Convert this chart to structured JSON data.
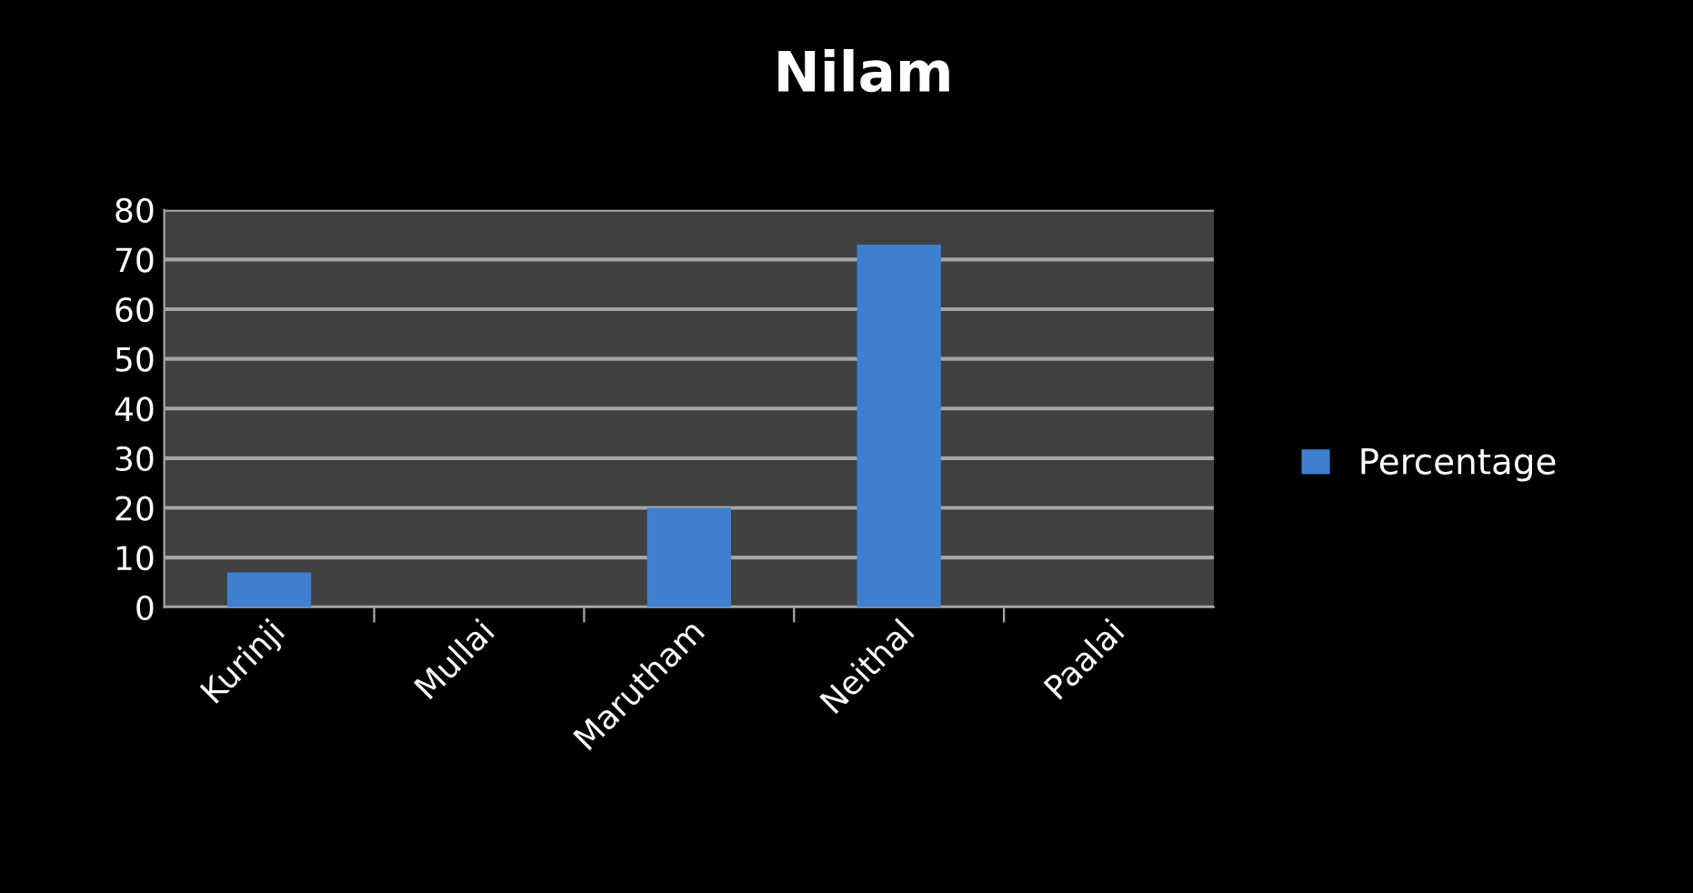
{
  "chart_data": {
    "type": "bar",
    "title": "Nilam",
    "categories": [
      "Kurinji",
      "Mullai",
      "Marutham",
      "Neithal",
      "Paalai"
    ],
    "series": [
      {
        "name": "Percentage",
        "color": "#3f7fd0",
        "values": [
          7,
          0,
          20,
          73,
          0
        ]
      }
    ],
    "ylim": [
      0,
      80
    ],
    "yticks": [
      0,
      10,
      20,
      30,
      40,
      50,
      60,
      70,
      80
    ],
    "grid": "y",
    "legend": "right"
  }
}
